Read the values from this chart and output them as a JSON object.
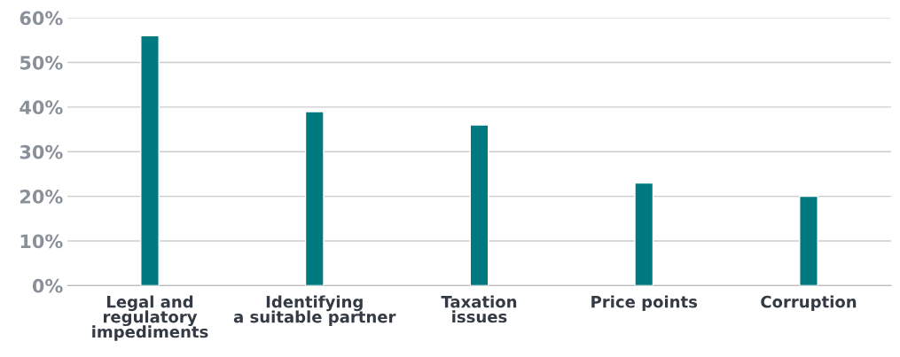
{
  "chart_data": {
    "type": "bar",
    "categories": [
      "Legal and\nregulatory\nimpediments",
      "Identifying\na suitable partner",
      "Taxation\nissues",
      "Price points",
      "Corruption"
    ],
    "values": [
      56,
      39,
      36,
      23,
      20
    ],
    "color": "#007a80",
    "ylim": [
      0,
      60
    ],
    "yticks": [
      {
        "value": 0,
        "label": "0%"
      },
      {
        "value": 10,
        "label": "10%"
      },
      {
        "value": 20,
        "label": "20%"
      },
      {
        "value": 30,
        "label": "30%"
      },
      {
        "value": 40,
        "label": "40%"
      },
      {
        "value": 50,
        "label": "50%"
      },
      {
        "value": 60,
        "label": "60%"
      }
    ],
    "grid": "y"
  }
}
